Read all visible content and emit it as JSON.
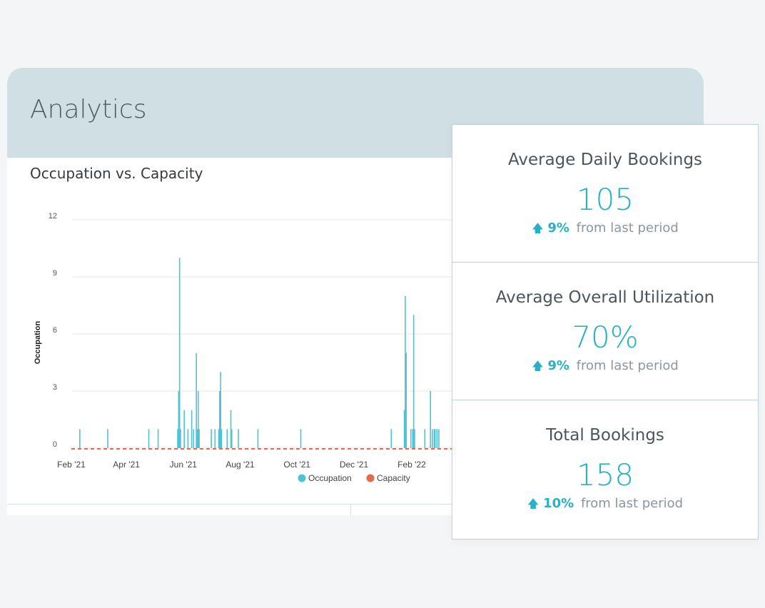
{
  "panel": {
    "title": "Analytics"
  },
  "chart_section": {
    "title": "Occupation vs. Capacity"
  },
  "colors": {
    "occupation": "#4ec3d4",
    "capacity": "#e8684a",
    "accent": "#27b1c7",
    "header_bg": "#d0dfe4"
  },
  "chart_data": {
    "type": "bar",
    "title": "Occupation vs. Capacity",
    "xlabel": "",
    "ylabel": "Occupation",
    "ylim": [
      0,
      12
    ],
    "yticks": [
      0,
      3,
      6,
      9,
      12
    ],
    "x_tick_labels": [
      "Feb '21",
      "Apr '21",
      "Jun '21",
      "Aug '21",
      "Oct '21",
      "Dec '21",
      "Feb '22"
    ],
    "x_tick_dates": [
      "2021-02-01",
      "2021-04-01",
      "2021-06-01",
      "2021-08-01",
      "2021-10-01",
      "2021-12-01",
      "2022-02-01"
    ],
    "grid": true,
    "legend_position": "bottom",
    "series": [
      {
        "name": "Occupation",
        "type": "bar",
        "points": [
          [
            "2021-02-10",
            1
          ],
          [
            "2021-03-12",
            1
          ],
          [
            "2021-04-25",
            1
          ],
          [
            "2021-05-05",
            1
          ],
          [
            "2021-05-26",
            1
          ],
          [
            "2021-05-27",
            3
          ],
          [
            "2021-05-28",
            10
          ],
          [
            "2021-05-29",
            1
          ],
          [
            "2021-06-02",
            2
          ],
          [
            "2021-06-06",
            1
          ],
          [
            "2021-06-10",
            2
          ],
          [
            "2021-06-12",
            1
          ],
          [
            "2021-06-15",
            5
          ],
          [
            "2021-06-16",
            1
          ],
          [
            "2021-06-17",
            3
          ],
          [
            "2021-06-18",
            1
          ],
          [
            "2021-07-01",
            1
          ],
          [
            "2021-07-05",
            1
          ],
          [
            "2021-07-09",
            1
          ],
          [
            "2021-07-10",
            3
          ],
          [
            "2021-07-11",
            4
          ],
          [
            "2021-07-12",
            1
          ],
          [
            "2021-07-18",
            1
          ],
          [
            "2021-07-22",
            2
          ],
          [
            "2021-07-23",
            1
          ],
          [
            "2021-07-30",
            1
          ],
          [
            "2021-08-20",
            1
          ],
          [
            "2021-10-05",
            1
          ],
          [
            "2022-01-10",
            1
          ],
          [
            "2022-01-24",
            2
          ],
          [
            "2022-01-25",
            8
          ],
          [
            "2022-01-26",
            5
          ],
          [
            "2022-01-31",
            1
          ],
          [
            "2022-02-02",
            1
          ],
          [
            "2022-02-03",
            7
          ],
          [
            "2022-02-04",
            1
          ],
          [
            "2022-02-15",
            1
          ],
          [
            "2022-02-21",
            3
          ],
          [
            "2022-02-23",
            1
          ],
          [
            "2022-02-25",
            1
          ],
          [
            "2022-02-26",
            1
          ],
          [
            "2022-02-28",
            1
          ],
          [
            "2022-03-02",
            1
          ]
        ]
      },
      {
        "name": "Capacity",
        "type": "line",
        "constant": 0
      }
    ]
  },
  "stats": [
    {
      "label": "Average Daily Bookings",
      "value": "105",
      "change_pct": "9%",
      "change_text": "from last period"
    },
    {
      "label": "Average Overall Utilization",
      "value": "70%",
      "change_pct": "9%",
      "change_text": "from last period"
    },
    {
      "label": "Total Bookings",
      "value": "158",
      "change_pct": "10%",
      "change_text": "from last period"
    }
  ]
}
